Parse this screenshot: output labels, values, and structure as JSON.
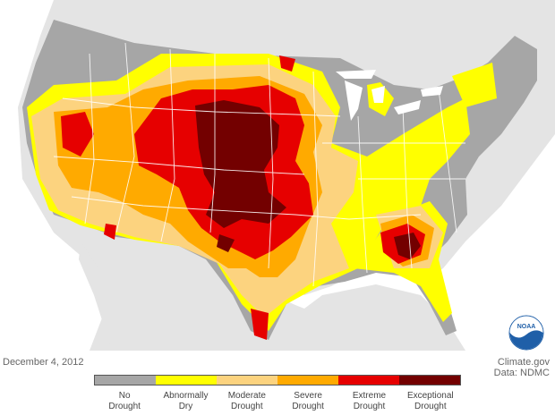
{
  "date": "December 4, 2012",
  "credit": {
    "line1": "Climate.gov",
    "line2": "Data: NDMC"
  },
  "logo_text": "NOAA",
  "legend": [
    {
      "line1": "No",
      "line2": "Drought",
      "color": "#a6a6a6"
    },
    {
      "line1": "Abnormally",
      "line2": "Dry",
      "color": "#ffff00"
    },
    {
      "line1": "Moderate",
      "line2": "Drought",
      "color": "#fcd37f"
    },
    {
      "line1": "Severe",
      "line2": "Drought",
      "color": "#ffaa00"
    },
    {
      "line1": "Extreme",
      "line2": "Drought",
      "color": "#e60000"
    },
    {
      "line1": "Exceptional",
      "line2": "Drought",
      "color": "#730000"
    }
  ],
  "colors": {
    "land_background": "#e2e2e2",
    "water": "#ffffff",
    "state_borders": "#ffffff"
  }
}
